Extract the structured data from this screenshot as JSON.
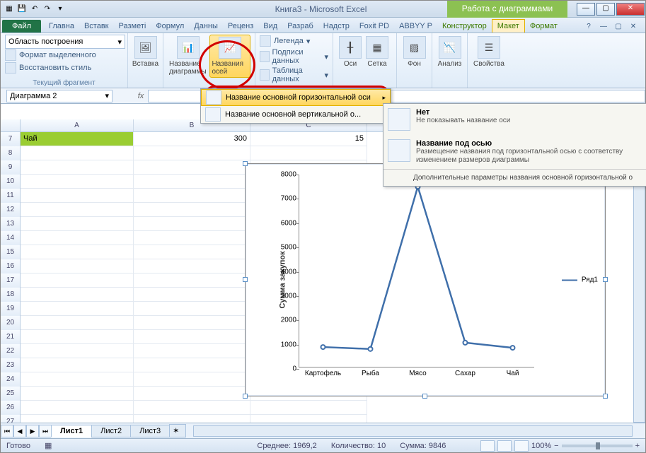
{
  "title": "Книга3 - Microsoft Excel",
  "chartToolsTitle": "Работа с диаграммами",
  "tabs": {
    "file": "Файл",
    "list": [
      "Главна",
      "Вставк",
      "Разметі",
      "Формул",
      "Данны",
      "Реценз",
      "Вид",
      "Разраб",
      "Надстр",
      "Foxit PD",
      "ABBYY P"
    ],
    "ctx": [
      "Конструктор",
      "Макет",
      "Формат"
    ],
    "active": "Макет"
  },
  "ribbon": {
    "selectionDropdown": "Область построения",
    "formatSel": "Формат выделенного",
    "resetStyle": "Восстановить стиль",
    "groupFragment": "Текущий фрагмент",
    "insert": "Вставка",
    "chartTitle": "Название диаграммы",
    "axisTitle": "Названия осей",
    "legend": "Легенда",
    "dataLabels": "Подписи данных",
    "dataTable": "Таблица данных",
    "axes": "Оси",
    "gridlines": "Сетка",
    "background": "Фон",
    "analysis": "Анализ",
    "properties": "Свойства"
  },
  "menu1": {
    "hAxis": "Название основной горизонтальной оси",
    "vAxis": "Название основной вертикальной о..."
  },
  "menu2": {
    "none": "Нет",
    "noneDesc": "Не показывать название оси",
    "below": "Название под осью",
    "belowDesc": "Размещение названия под горизонтальной осью с соответству изменением размеров диаграммы",
    "more": "Дополнительные параметры названия основной горизонтальной о"
  },
  "namebox": "Диаграмма 2",
  "cells": {
    "rowNum": "7",
    "a7": "Чай",
    "b7": "300",
    "c7": "15"
  },
  "chart": {
    "yLabel": "Сумма закупок",
    "yticks": [
      "0",
      "1000",
      "2000",
      "3000",
      "4000",
      "5000",
      "6000",
      "7000",
      "8000"
    ],
    "xcats": [
      "Картофель",
      "Рыба",
      "Мясо",
      "Сахар",
      "Чай"
    ],
    "series": "Ряд1",
    "values": [
      900,
      820,
      7500,
      1080,
      870
    ],
    "lineColor": "#3f6faa",
    "ymax": 8000
  },
  "sheets": {
    "s1": "Лист1",
    "s2": "Лист2",
    "s3": "Лист3"
  },
  "status": {
    "ready": "Готово",
    "avg": "Среднее: 1969,2",
    "count": "Количество: 10",
    "sum": "Сумма: 9846",
    "zoom": "100%"
  }
}
